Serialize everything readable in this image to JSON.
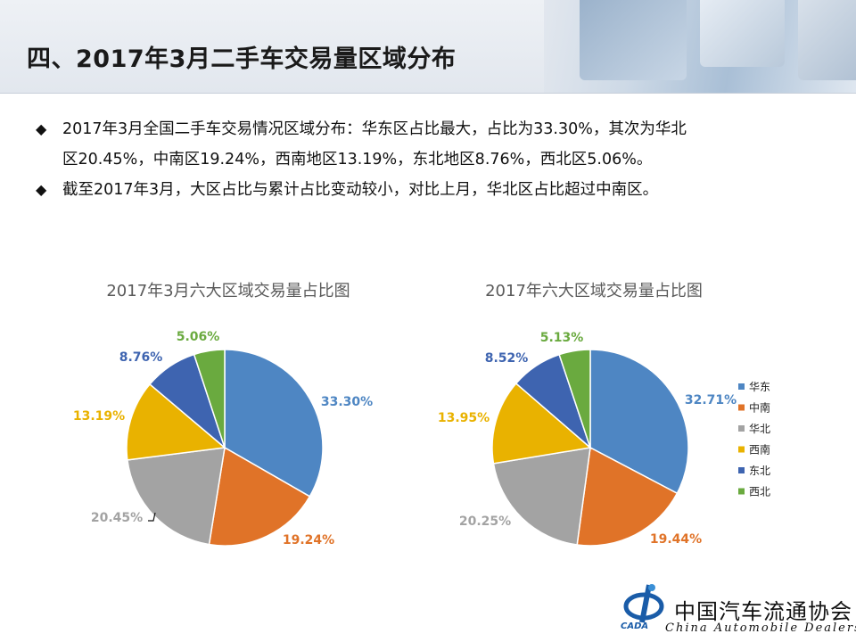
{
  "header": {
    "title": "四、2017年3月二手车交易量区域分布"
  },
  "bullets": [
    {
      "mark": "◆",
      "text": "2017年3月全国二手车交易情况区域分布：华东区占比最大，占比为33.30%，其次为华北"
    },
    {
      "mark": "",
      "text": "区20.45%，中南区19.24%，西南地区13.19%，东北地区8.76%，西北区5.06%。"
    },
    {
      "mark": "◆",
      "text": "截至2017年3月，大区占比与累计占比变动较小，对比上月，华北区占比超过中南区。"
    }
  ],
  "chart_data": [
    {
      "type": "pie",
      "title": "2017年3月六大区域交易量占比图",
      "categories": [
        "华东",
        "中南",
        "华北",
        "西南",
        "东北",
        "西北"
      ],
      "values": [
        33.3,
        19.24,
        20.45,
        13.19,
        8.76,
        5.06
      ],
      "labels": [
        "33.30%",
        "19.24%",
        "20.45%",
        "13.19%",
        "8.76%",
        "5.06%"
      ],
      "colors": [
        "#4e86c3",
        "#e07328",
        "#a3a3a3",
        "#e9b200",
        "#3e64b0",
        "#6aaa3f"
      ]
    },
    {
      "type": "pie",
      "title": "2017年六大区域交易量占比图",
      "categories": [
        "华东",
        "中南",
        "华北",
        "西南",
        "东北",
        "西北"
      ],
      "values": [
        32.71,
        19.44,
        20.25,
        13.95,
        8.52,
        5.13
      ],
      "labels": [
        "32.71%",
        "19.44%",
        "20.25%",
        "13.95%",
        "8.52%",
        "5.13%"
      ],
      "colors": [
        "#4e86c3",
        "#e07328",
        "#a3a3a3",
        "#e9b200",
        "#3e64b0",
        "#6aaa3f"
      ],
      "legend": {
        "position": "right",
        "items": [
          "华东",
          "中南",
          "华北",
          "西南",
          "东北",
          "西北"
        ]
      }
    }
  ],
  "footer": {
    "org_name_cn": "中国汽车流通协会",
    "org_name_en": "China  Automobile Dealers",
    "logo_abbr": "CADA"
  }
}
